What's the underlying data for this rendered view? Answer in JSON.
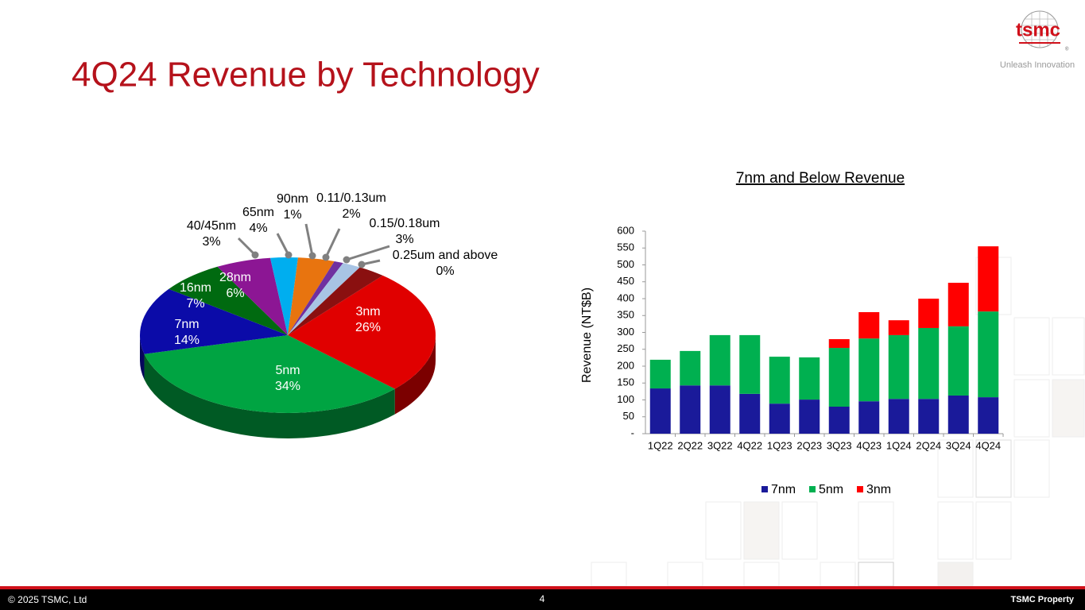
{
  "header": {
    "title": "4Q24 Revenue by Technology",
    "logo": "tsmc",
    "logo_mark": "®",
    "tagline": "Unleash Innovation"
  },
  "footer": {
    "copyright": "© 2025 TSMC, Ltd",
    "page": "4",
    "property": "TSMC Property"
  },
  "chart_data": [
    {
      "type": "pie",
      "categories": [
        "3nm",
        "5nm",
        "7nm",
        "16nm",
        "28nm",
        "40/45nm",
        "65nm",
        "90nm",
        "0.11/0.13um",
        "0.15/0.18um",
        "0.25um and above"
      ],
      "values": [
        26,
        34,
        14,
        7,
        6,
        3,
        4,
        1,
        2,
        3,
        0
      ],
      "value_labels": [
        "26%",
        "34%",
        "14%",
        "7%",
        "6%",
        "3%",
        "4%",
        "1%",
        "2%",
        "3%",
        "0%"
      ],
      "colors": [
        "#e00000",
        "#00a442",
        "#0b0ba8",
        "#006a10",
        "#8c1694",
        "#00aeef",
        "#e8740f",
        "#7030a0",
        "#a8c4e4",
        "#8a1010",
        "#c00000"
      ]
    },
    {
      "type": "stacked_bar",
      "title": "7nm and Below Revenue",
      "y_label": "Revenue (NT$B)",
      "categories": [
        "1Q22",
        "2Q22",
        "3Q22",
        "4Q22",
        "1Q23",
        "2Q23",
        "3Q23",
        "4Q23",
        "1Q24",
        "2Q24",
        "3Q24",
        "4Q24"
      ],
      "series": [
        {
          "name": "7nm",
          "color": "#1a1a9a",
          "values": [
            134,
            143,
            143,
            118,
            89,
            101,
            80,
            96,
            103,
            103,
            113,
            108
          ]
        },
        {
          "name": "5nm",
          "color": "#00b050",
          "values": [
            85,
            102,
            149,
            174,
            139,
            125,
            174,
            186,
            189,
            210,
            205,
            254
          ]
        },
        {
          "name": "3nm",
          "color": "#ff0000",
          "values": [
            0,
            0,
            0,
            0,
            0,
            0,
            26,
            78,
            44,
            87,
            129,
            193
          ]
        }
      ],
      "ylim": [
        0,
        600
      ],
      "yticks": [
        {
          "value": 0,
          "label": "-"
        },
        50,
        100,
        150,
        200,
        250,
        300,
        350,
        400,
        450,
        500,
        550,
        600
      ],
      "grid": false,
      "legend": "bottom"
    }
  ]
}
